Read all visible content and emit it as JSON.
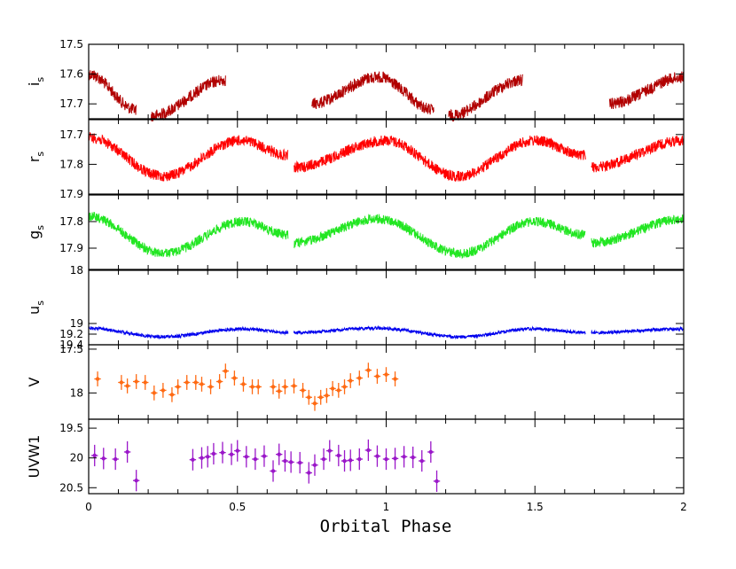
{
  "chart_data": {
    "type": "scatter",
    "x_label": "Orbital Phase",
    "x_range": [
      0,
      2
    ],
    "x_ticks": [
      0,
      0.5,
      1,
      1.5,
      2
    ],
    "x_tick_labels": [
      "0",
      "0.5",
      "1",
      "1.5",
      "2"
    ],
    "grid": false,
    "panels": [
      {
        "ylabel_main": "i",
        "ylabel_sub": "s",
        "ylim": [
          17.5,
          17.75
        ],
        "y_inverted": true,
        "y_ticks": [
          17.5,
          17.6,
          17.7
        ],
        "y_tick_labels": [
          "17.5",
          "17.6",
          "17.7"
        ],
        "style": "dense",
        "color": "#b10000",
        "amplitude": 0.07,
        "noise": 0.02,
        "segments": [
          {
            "x": [
              0.0,
              0.16
            ],
            "y": [
              17.6,
              17.72
            ]
          },
          {
            "x": [
              0.21,
              0.46
            ],
            "y": [
              17.74,
              17.62
            ]
          },
          {
            "x": [
              0.75,
              0.97,
              1.16
            ],
            "y": [
              17.7,
              17.61,
              17.72
            ]
          },
          {
            "x": [
              1.21,
              1.46
            ],
            "y": [
              17.74,
              17.62
            ]
          },
          {
            "x": [
              1.75,
              2.0
            ],
            "y": [
              17.7,
              17.61
            ]
          }
        ]
      },
      {
        "ylabel_main": "r",
        "ylabel_sub": "s",
        "ylim": [
          17.65,
          17.9
        ],
        "y_inverted": true,
        "y_ticks": [
          17.7,
          17.8,
          17.9
        ],
        "y_tick_labels": [
          "17.7",
          "17.8",
          "17.9"
        ],
        "style": "dense",
        "color": "#ff0000",
        "amplitude": 0.06,
        "noise": 0.018,
        "segments": [
          {
            "x": [
              0.0,
              0.25,
              0.51,
              0.67
            ],
            "y": [
              17.71,
              17.84,
              17.72,
              17.77
            ]
          },
          {
            "x": [
              0.69,
              1.0,
              1.24,
              1.5,
              1.67
            ],
            "y": [
              17.81,
              17.72,
              17.84,
              17.72,
              17.77
            ]
          },
          {
            "x": [
              1.69,
              2.0
            ],
            "y": [
              17.81,
              17.72
            ]
          }
        ]
      },
      {
        "ylabel_main": "g",
        "ylabel_sub": "s",
        "ylim": [
          17.7,
          17.98
        ],
        "y_inverted": true,
        "y_ticks": [
          17.8,
          17.9
        ],
        "y_tick_labels": [
          "17.8",
          "17.9"
        ],
        "style": "dense",
        "color": "#22e622",
        "amplitude": 0.06,
        "noise": 0.018,
        "segments": [
          {
            "x": [
              0.0,
              0.25,
              0.52,
              0.67
            ],
            "y": [
              17.78,
              17.92,
              17.8,
              17.85
            ]
          },
          {
            "x": [
              0.69,
              0.97,
              1.25,
              1.5,
              1.67
            ],
            "y": [
              17.88,
              17.79,
              17.92,
              17.8,
              17.85
            ]
          },
          {
            "x": [
              1.69,
              2.0
            ],
            "y": [
              17.88,
              17.79
            ]
          }
        ]
      },
      {
        "ylabel_main": "u",
        "ylabel_sub": "s",
        "ylim": [
          18.0,
          19.4
        ],
        "y_inverted": true,
        "y_ticks": [
          18,
          19,
          19.2,
          19.4
        ],
        "y_tick_labels": [
          "18",
          "19",
          "19.2",
          "19.4"
        ],
        "style": "dense",
        "color": "#0000ee",
        "amplitude": 0.06,
        "noise": 0.03,
        "segments": [
          {
            "x": [
              0.0,
              0.25,
              0.52,
              0.67
            ],
            "y": [
              19.09,
              19.25,
              19.1,
              19.17
            ]
          },
          {
            "x": [
              0.69,
              0.97,
              1.25,
              1.5,
              1.67
            ],
            "y": [
              19.17,
              19.09,
              19.25,
              19.1,
              19.17
            ]
          },
          {
            "x": [
              1.69,
              2.0
            ],
            "y": [
              19.17,
              19.1
            ]
          }
        ]
      },
      {
        "ylabel_main": "V",
        "ylabel_sub": "",
        "ylim": [
          17.45,
          18.3
        ],
        "y_inverted": true,
        "y_ticks": [
          17.5,
          18
        ],
        "y_tick_labels": [
          "17.5",
          "18"
        ],
        "style": "errorbar",
        "color": "#ff6a13",
        "yerr": 0.085,
        "xerr": 0.011,
        "points": [
          {
            "x": 0.03,
            "y": 17.84
          },
          {
            "x": 0.11,
            "y": 17.88
          },
          {
            "x": 0.13,
            "y": 17.92
          },
          {
            "x": 0.16,
            "y": 17.87
          },
          {
            "x": 0.19,
            "y": 17.88
          },
          {
            "x": 0.22,
            "y": 18.0
          },
          {
            "x": 0.25,
            "y": 17.97
          },
          {
            "x": 0.28,
            "y": 18.02
          },
          {
            "x": 0.3,
            "y": 17.93
          },
          {
            "x": 0.33,
            "y": 17.88
          },
          {
            "x": 0.36,
            "y": 17.88
          },
          {
            "x": 0.38,
            "y": 17.9
          },
          {
            "x": 0.41,
            "y": 17.93
          },
          {
            "x": 0.44,
            "y": 17.87
          },
          {
            "x": 0.46,
            "y": 17.75
          },
          {
            "x": 0.49,
            "y": 17.83
          },
          {
            "x": 0.52,
            "y": 17.9
          },
          {
            "x": 0.55,
            "y": 17.93
          },
          {
            "x": 0.57,
            "y": 17.93
          },
          {
            "x": 0.62,
            "y": 17.93
          },
          {
            "x": 0.64,
            "y": 17.98
          },
          {
            "x": 0.66,
            "y": 17.93
          },
          {
            "x": 0.69,
            "y": 17.92
          },
          {
            "x": 0.72,
            "y": 17.97
          },
          {
            "x": 0.74,
            "y": 18.05
          },
          {
            "x": 0.76,
            "y": 18.12
          },
          {
            "x": 0.78,
            "y": 18.05
          },
          {
            "x": 0.8,
            "y": 18.03
          },
          {
            "x": 0.82,
            "y": 17.95
          },
          {
            "x": 0.84,
            "y": 17.97
          },
          {
            "x": 0.86,
            "y": 17.93
          },
          {
            "x": 0.88,
            "y": 17.86
          },
          {
            "x": 0.91,
            "y": 17.83
          },
          {
            "x": 0.94,
            "y": 17.74
          },
          {
            "x": 0.97,
            "y": 17.81
          },
          {
            "x": 1.0,
            "y": 17.79
          },
          {
            "x": 1.03,
            "y": 17.84
          }
        ]
      },
      {
        "ylabel_main": "UVW1",
        "ylabel_sub": "",
        "ylim": [
          19.35,
          20.6
        ],
        "y_inverted": true,
        "y_ticks": [
          19.5,
          20,
          20.5
        ],
        "y_tick_labels": [
          "19.5",
          "20",
          "20.5"
        ],
        "style": "errorbar",
        "color": "#9a17c9",
        "yerr": 0.18,
        "xerr": 0.011,
        "points": [
          {
            "x": 0.02,
            "y": 19.96
          },
          {
            "x": 0.05,
            "y": 20.01
          },
          {
            "x": 0.09,
            "y": 20.02
          },
          {
            "x": 0.13,
            "y": 19.9
          },
          {
            "x": 0.16,
            "y": 20.38
          },
          {
            "x": 0.35,
            "y": 20.03
          },
          {
            "x": 0.38,
            "y": 20.0
          },
          {
            "x": 0.4,
            "y": 19.98
          },
          {
            "x": 0.42,
            "y": 19.93
          },
          {
            "x": 0.45,
            "y": 19.91
          },
          {
            "x": 0.48,
            "y": 19.94
          },
          {
            "x": 0.5,
            "y": 19.88
          },
          {
            "x": 0.53,
            "y": 19.98
          },
          {
            "x": 0.56,
            "y": 20.02
          },
          {
            "x": 0.59,
            "y": 19.97
          },
          {
            "x": 0.62,
            "y": 20.22
          },
          {
            "x": 0.64,
            "y": 19.94
          },
          {
            "x": 0.66,
            "y": 20.05
          },
          {
            "x": 0.68,
            "y": 20.07
          },
          {
            "x": 0.71,
            "y": 20.08
          },
          {
            "x": 0.74,
            "y": 20.25
          },
          {
            "x": 0.76,
            "y": 20.12
          },
          {
            "x": 0.79,
            "y": 20.02
          },
          {
            "x": 0.81,
            "y": 19.88
          },
          {
            "x": 0.84,
            "y": 19.96
          },
          {
            "x": 0.86,
            "y": 20.05
          },
          {
            "x": 0.88,
            "y": 20.04
          },
          {
            "x": 0.91,
            "y": 20.02
          },
          {
            "x": 0.94,
            "y": 19.87
          },
          {
            "x": 0.97,
            "y": 19.97
          },
          {
            "x": 1.0,
            "y": 20.02
          },
          {
            "x": 1.03,
            "y": 20.01
          },
          {
            "x": 1.06,
            "y": 19.98
          },
          {
            "x": 1.09,
            "y": 19.99
          },
          {
            "x": 1.12,
            "y": 20.05
          },
          {
            "x": 1.15,
            "y": 19.9
          },
          {
            "x": 1.17,
            "y": 20.39
          }
        ]
      }
    ]
  }
}
